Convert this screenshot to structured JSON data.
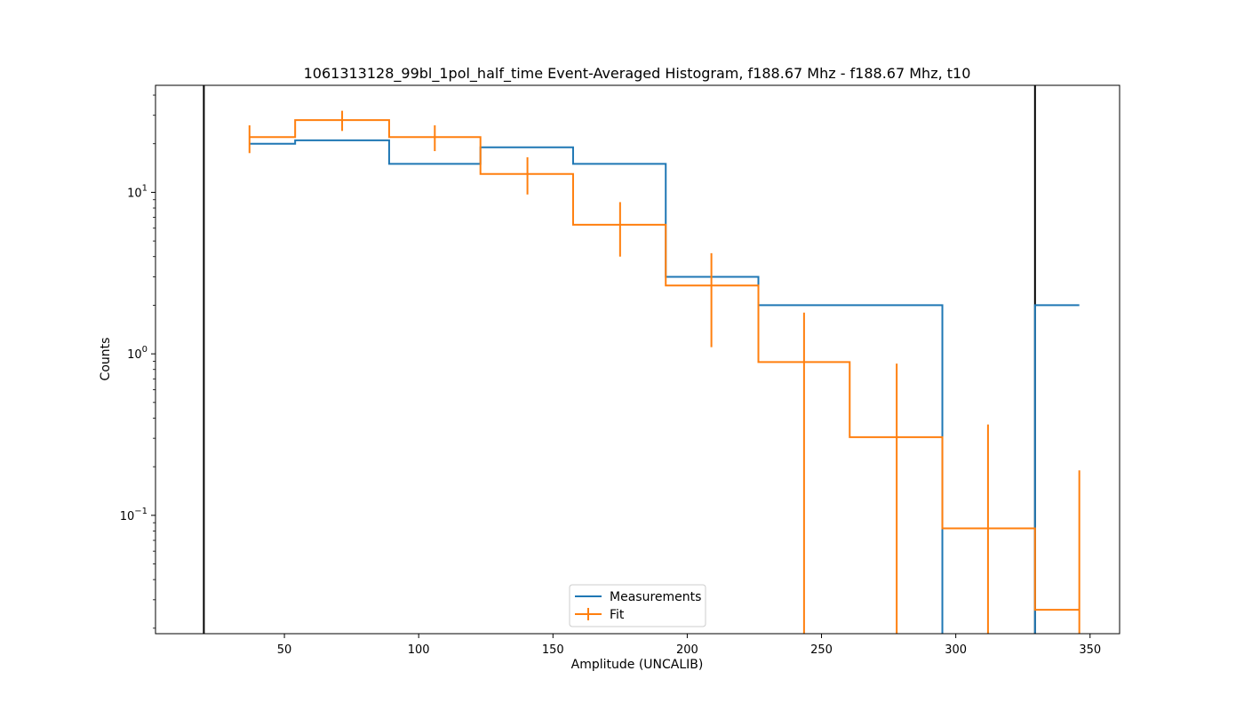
{
  "chart_data": {
    "type": "line",
    "title": "1061313128_99bl_1pol_half_time Event-Averaged Histogram, f188.67 Mhz - f188.67 Mhz, t10",
    "xlabel": "Amplitude (UNCALIB)",
    "ylabel": "Counts",
    "xscale": "linear",
    "yscale": "log",
    "xlim": [
      2,
      361
    ],
    "ylim": [
      0.0185,
      46
    ],
    "x_ticks": [
      50,
      100,
      150,
      200,
      250,
      300,
      350
    ],
    "y_ticks": [
      {
        "value": 0.1,
        "base": "10",
        "exp": "−1"
      },
      {
        "value": 1,
        "base": "10",
        "exp": "0"
      },
      {
        "value": 10,
        "base": "10",
        "exp": "1"
      }
    ],
    "grid": false,
    "legend_location": "lower center",
    "vertical_lines": [
      20,
      329.5
    ],
    "colors": {
      "measurements": "#1f77b4",
      "fit": "#ff7f0e",
      "vline": "#000000"
    },
    "series": [
      {
        "name": "Measurements",
        "style": "step",
        "x": [
          37,
          54,
          89,
          123,
          157.5,
          192,
          226.5,
          260.5,
          295,
          329.5,
          346
        ],
        "y": [
          20,
          21,
          15,
          19,
          15,
          3,
          2,
          2,
          0.01,
          2,
          2
        ]
      },
      {
        "name": "Fit",
        "style": "step-errorbar",
        "x": [
          37,
          54,
          89,
          123,
          157.5,
          192,
          226.5,
          260.5,
          295,
          329.5,
          346
        ],
        "y": [
          22,
          28,
          22,
          13,
          6.3,
          2.65,
          0.89,
          0.305,
          0.083,
          0.026,
          0.026
        ],
        "error_x": [
          37,
          71.5,
          106,
          140.5,
          175,
          209,
          243.5,
          278,
          312,
          346
        ],
        "error_y": [
          22,
          28,
          22,
          13,
          6.3,
          2.65,
          0.89,
          0.305,
          0.083,
          0.026
        ],
        "error_low": [
          17.5,
          24,
          18,
          9.7,
          4,
          1.1,
          0.01,
          0.01,
          0.01,
          0.01
        ],
        "error_high": [
          26,
          32,
          26,
          16.5,
          8.7,
          4.2,
          1.8,
          0.87,
          0.365,
          0.19
        ]
      }
    ]
  }
}
